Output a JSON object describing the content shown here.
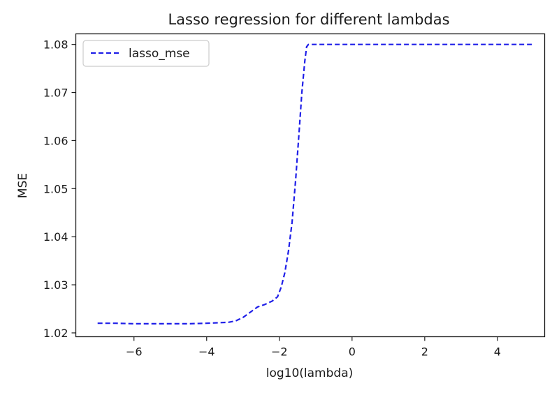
{
  "chart_data": {
    "type": "line",
    "title": "Lasso regression for different lambdas",
    "xlabel": "log10(lambda)",
    "ylabel": "MSE",
    "xlim": [
      -7.6,
      5.3
    ],
    "ylim": [
      1.0192,
      1.0822
    ],
    "xticks": [
      -6,
      -4,
      -2,
      0,
      2,
      4
    ],
    "xtick_labels": [
      "−6",
      "−4",
      "−2",
      "0",
      "2",
      "4"
    ],
    "yticks": [
      1.02,
      1.03,
      1.04,
      1.05,
      1.06,
      1.07,
      1.08
    ],
    "ytick_labels": [
      "1.02",
      "1.03",
      "1.04",
      "1.05",
      "1.06",
      "1.07",
      "1.08"
    ],
    "grid": false,
    "legend_position": "top-left",
    "series": [
      {
        "name": "lasso_mse",
        "color": "#1f1fe8",
        "linestyle": "dashed",
        "x": [
          -7.0,
          -6.5,
          -6.0,
          -5.5,
          -5.0,
          -4.5,
          -4.0,
          -3.7,
          -3.4,
          -3.2,
          -3.0,
          -2.8,
          -2.6,
          -2.4,
          -2.2,
          -2.05,
          -1.95,
          -1.85,
          -1.75,
          -1.65,
          -1.55,
          -1.45,
          -1.38,
          -1.3,
          -1.25,
          -1.2,
          -1.0,
          0.0,
          2.0,
          4.0,
          5.0
        ],
        "y": [
          1.022,
          1.022,
          1.0219,
          1.0219,
          1.0219,
          1.0219,
          1.022,
          1.0221,
          1.0222,
          1.0225,
          1.0232,
          1.0243,
          1.0254,
          1.0259,
          1.0266,
          1.0275,
          1.0295,
          1.0325,
          1.037,
          1.043,
          1.052,
          1.0625,
          1.07,
          1.0765,
          1.0795,
          1.08,
          1.08,
          1.08,
          1.08,
          1.08,
          1.08
        ]
      }
    ]
  }
}
